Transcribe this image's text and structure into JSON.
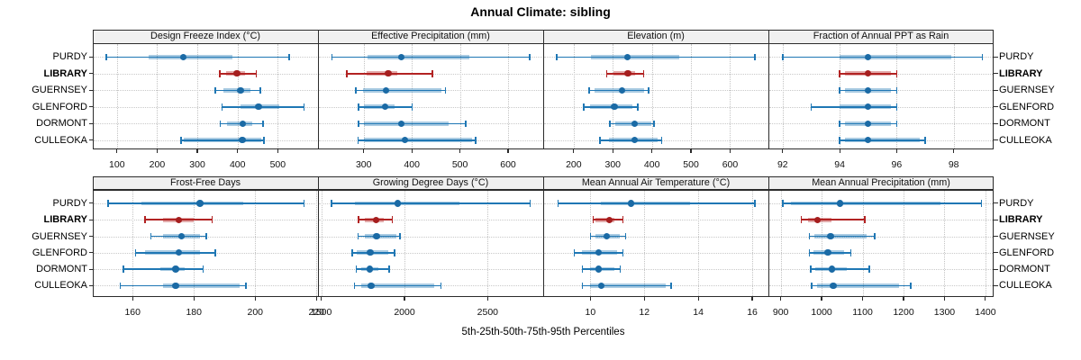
{
  "title": "Annual Climate: sibling",
  "xlabel": "5th-25th-50th-75th-95th Percentiles",
  "percentile_labels": [
    "5th",
    "25th",
    "50th",
    "75th",
    "95th"
  ],
  "stations": [
    "PURDY",
    "LIBRARY",
    "GUERNSEY",
    "GLENFORD",
    "DORMONT",
    "CULLEOKA"
  ],
  "highlight_station": "LIBRARY",
  "colors": {
    "series_normal": "#1f77b4",
    "series_highlight": "#b22222",
    "dot_normal": "#1a6aa5",
    "dot_highlight": "#a51e1e",
    "strip_background": "#f0f0f0",
    "panel_border": "#2b2b2b",
    "gridline": "#c6c6c6",
    "text": "#000000"
  },
  "chart_data": [
    {
      "type": "dotplot-percentiles",
      "row": 0,
      "col": 0,
      "title": "Design Freeze Index (°C)",
      "xlim": [
        40,
        600
      ],
      "ticks": [
        100,
        200,
        300,
        400,
        500
      ],
      "values": [
        [
          74,
          178,
          265,
          388,
          528
        ],
        [
          356,
          371,
          398,
          419,
          447
        ],
        [
          344,
          365,
          407,
          433,
          456
        ],
        [
          361,
          407,
          452,
          504,
          565
        ],
        [
          357,
          374,
          413,
          437,
          463
        ],
        [
          259,
          266,
          412,
          460,
          466
        ]
      ]
    },
    {
      "type": "dotplot-percentiles",
      "row": 0,
      "col": 1,
      "title": "Effective Precipitation (mm)",
      "xlim": [
        205,
        673
      ],
      "ticks": [
        300,
        400,
        500,
        600
      ],
      "values": [
        [
          234,
          308,
          378,
          520,
          645
        ],
        [
          265,
          307,
          351,
          370,
          443
        ],
        [
          284,
          298,
          346,
          462,
          470
        ],
        [
          289,
          301,
          344,
          364,
          401
        ],
        [
          289,
          301,
          378,
          476,
          512
        ],
        [
          288,
          301,
          386,
          525,
          533
        ]
      ]
    },
    {
      "type": "dotplot-percentiles",
      "row": 0,
      "col": 2,
      "title": "Elevation (m)",
      "xlim": [
        122,
        698
      ],
      "ticks": [
        200,
        300,
        400,
        500,
        600
      ],
      "values": [
        [
          157,
          243,
          337,
          469,
          663
        ],
        [
          284,
          302,
          339,
          358,
          379
        ],
        [
          240,
          253,
          324,
          380,
          391
        ],
        [
          226,
          241,
          304,
          349,
          364
        ],
        [
          293,
          307,
          356,
          398,
          406
        ],
        [
          267,
          290,
          356,
          415,
          425
        ]
      ]
    },
    {
      "type": "dotplot-percentiles",
      "row": 0,
      "col": 3,
      "title": "Fraction of Annual PPT as Rain",
      "xlim": [
        91.5,
        99.4
      ],
      "ticks": [
        92,
        94,
        96,
        98
      ],
      "values": [
        [
          92,
          94,
          95,
          97.9,
          99
        ],
        [
          94,
          94.2,
          95,
          95.8,
          96
        ],
        [
          94,
          94.2,
          95,
          95.8,
          96
        ],
        [
          93,
          94,
          95,
          95.8,
          96
        ],
        [
          94,
          94.2,
          95,
          95.8,
          96
        ],
        [
          94,
          94.2,
          95,
          96.8,
          97
        ]
      ]
    },
    {
      "type": "dotplot-percentiles",
      "row": 1,
      "col": 0,
      "title": "Frost-Free Days",
      "xlim": [
        147,
        220.5
      ],
      "ticks": [
        160,
        180,
        200,
        220
      ],
      "values": [
        [
          152,
          163,
          182,
          196,
          216
        ],
        [
          164,
          170,
          175,
          180,
          186
        ],
        [
          166,
          170,
          176,
          182,
          184
        ],
        [
          161,
          164,
          175,
          182,
          187
        ],
        [
          157,
          169,
          174,
          177,
          183
        ],
        [
          156,
          170,
          174,
          195,
          197
        ]
      ]
    },
    {
      "type": "dotplot-percentiles",
      "row": 1,
      "col": 1,
      "title": "Growing Degree Days (°C)",
      "xlim": [
        1480,
        2834
      ],
      "ticks": [
        1500,
        2000,
        2500
      ],
      "values": [
        [
          1560,
          1700,
          1960,
          2330,
          2756
        ],
        [
          1724,
          1760,
          1829,
          1877,
          1926
        ],
        [
          1720,
          1762,
          1832,
          1950,
          1973
        ],
        [
          1685,
          1715,
          1795,
          1905,
          1940
        ],
        [
          1710,
          1742,
          1792,
          1841,
          1908
        ],
        [
          1700,
          1742,
          1800,
          2180,
          2220
        ]
      ]
    },
    {
      "type": "dotplot-percentiles",
      "row": 1,
      "col": 2,
      "title": "Mean Annual Air Temperature (°C)",
      "xlim": [
        8.25,
        16.6
      ],
      "ticks": [
        10,
        12,
        14,
        16
      ],
      "values": [
        [
          8.8,
          10.4,
          11.5,
          13.7,
          16.1
        ],
        [
          10.1,
          10.2,
          10.7,
          10.9,
          11.2
        ],
        [
          10.0,
          10.2,
          10.6,
          11.1,
          11.3
        ],
        [
          9.4,
          9.7,
          10.3,
          11.0,
          11.2
        ],
        [
          9.7,
          10.0,
          10.3,
          10.9,
          11.1
        ],
        [
          9.7,
          10.0,
          10.4,
          12.8,
          13.0
        ]
      ]
    },
    {
      "type": "dotplot-percentiles",
      "row": 1,
      "col": 3,
      "title": "Mean Annual Precipitation (mm)",
      "xlim": [
        870,
        1420
      ],
      "ticks": [
        900,
        1000,
        1100,
        1200,
        1300,
        1400
      ],
      "values": [
        [
          905,
          925,
          1045,
          1290,
          1390
        ],
        [
          950,
          966,
          990,
          1025,
          1105
        ],
        [
          970,
          982,
          1022,
          1110,
          1130
        ],
        [
          970,
          981,
          1015,
          1054,
          1071
        ],
        [
          973,
          984,
          1025,
          1061,
          1116
        ],
        [
          975,
          988,
          1028,
          1190,
          1217
        ]
      ]
    }
  ]
}
